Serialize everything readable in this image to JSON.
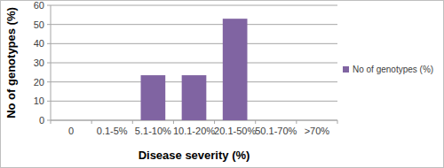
{
  "chart_data": {
    "type": "bar",
    "categories": [
      "0",
      "0.1-5%",
      "5.1-10%",
      "10.1-20%",
      "20.1-50%",
      "50.1-70%",
      ">70%"
    ],
    "values": [
      0,
      0,
      23.5,
      23.5,
      53,
      0,
      0
    ],
    "color": "#8064a2",
    "series_name": "No of genotypes (%)",
    "x_label": "Disease severity (%)",
    "y_label": "No of genotypes (%)",
    "ylim": [
      0,
      60
    ],
    "yticks": [
      0,
      10,
      20,
      30,
      40,
      50,
      60
    ],
    "grid": true,
    "legend": "right"
  }
}
